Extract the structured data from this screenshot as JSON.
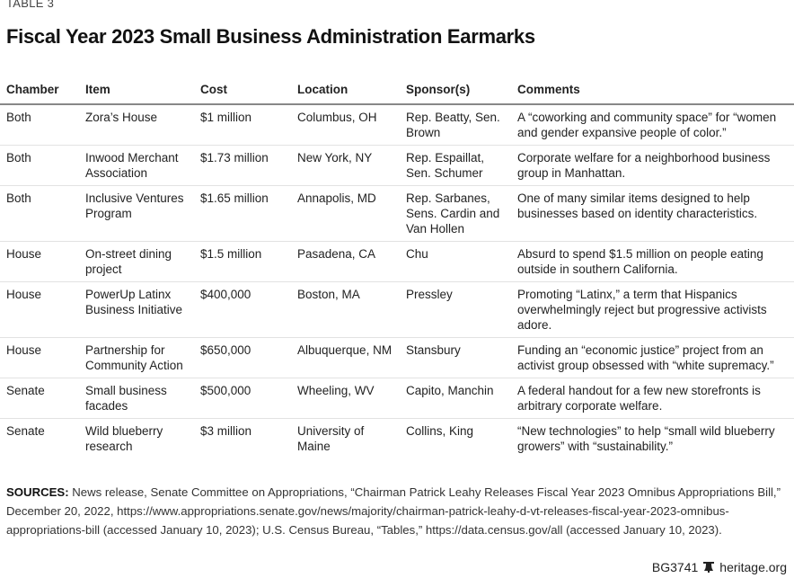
{
  "table_label": "TABLE 3",
  "title": "Fiscal Year 2023 Small Business Administration Earmarks",
  "columns": [
    "Chamber",
    "Item",
    "Cost",
    "Location",
    "Sponsor(s)",
    "Comments"
  ],
  "rows": [
    [
      "Both",
      "Zora’s House",
      "$1 million",
      "Columbus, OH",
      "Rep. Beatty, Sen. Brown",
      "A “coworking and community space” for “women and gender expansive people of color.”"
    ],
    [
      "Both",
      "Inwood Merchant Association",
      "$1.73 million",
      "New York, NY",
      "Rep. Espaillat, Sen. Schumer",
      "Corporate welfare for a neighborhood business group in Manhattan."
    ],
    [
      "Both",
      "Inclusive Ventures Program",
      "$1.65 million",
      "Annapolis, MD",
      "Rep. Sarbanes, Sens. Cardin and Van Hollen",
      "One of many similar items designed to help businesses based on identity characteristics."
    ],
    [
      "House",
      "On-street dining project",
      "$1.5 million",
      "Pasadena, CA",
      "Chu",
      "Absurd to spend $1.5 million on people eating outside in southern California."
    ],
    [
      "House",
      "PowerUp Latinx Business Initiative",
      "$400,000",
      "Boston, MA",
      "Pressley",
      "Promoting “Latinx,” a term that Hispanics overwhelmingly reject but progressive activists adore."
    ],
    [
      "House",
      "Partnership for Community Action",
      "$650,000",
      "Albuquerque, NM",
      "Stansbury",
      "Funding an “economic justice” project from an activist group obsessed with “white supremacy.”"
    ],
    [
      "Senate",
      "Small business facades",
      "$500,000",
      "Wheeling, WV",
      "Capito, Manchin",
      "A federal handout for a few new storefronts is arbitrary corporate welfare."
    ],
    [
      "Senate",
      "Wild blueberry research",
      "$3 million",
      "University of Maine",
      "Collins, King",
      "“New technologies” to help “small wild blueberry growers” with “sustainability.”"
    ]
  ],
  "sources": {
    "label": "SOURCES:",
    "text": " News release, Senate Committee on Appropriations, “Chairman Patrick Leahy Releases Fiscal Year 2023 Omnibus Appropriations Bill,” December 20, 2022, https://www.appropriations.senate.gov/news/majority/chairman-patrick-leahy-d-vt-releases-fiscal-year-2023-omnibus-appropriations-bill (accessed January 10, 2023); U.S. Census Bureau, “Tables,” https://data.census.gov/all (accessed January 10, 2023)."
  },
  "footer": {
    "code": "BG3741",
    "site": "heritage.org",
    "icon": "liberty-bell-icon"
  }
}
